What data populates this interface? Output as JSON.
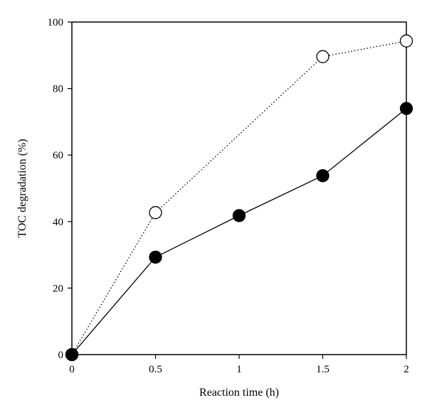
{
  "chart_data": {
    "type": "line",
    "title": "",
    "xlabel": "Reaction time (h)",
    "ylabel": "TOC degradation (%)",
    "xlim": [
      0,
      2
    ],
    "ylim": [
      0,
      100
    ],
    "x_ticks": [
      0,
      0.5,
      1,
      1.5,
      2
    ],
    "x_tick_labels": [
      "0",
      "0.5",
      "1",
      "1.5",
      "2"
    ],
    "y_ticks": [
      0,
      20,
      40,
      60,
      80,
      100
    ],
    "y_tick_labels": [
      "0",
      "20",
      "40",
      "60",
      "80",
      "100"
    ],
    "grid": false,
    "legend": "none",
    "series": [
      {
        "marker": "open-circle",
        "line_style": "dotted",
        "color": "#000000",
        "x": [
          0,
          0.5,
          1.5,
          2
        ],
        "y": [
          0,
          42.7,
          89.6,
          94.3
        ]
      },
      {
        "marker": "filled-circle",
        "line_style": "solid",
        "color": "#000000",
        "x": [
          0,
          0.5,
          1,
          1.5,
          2
        ],
        "y": [
          0,
          29.3,
          41.8,
          53.8,
          74.0
        ]
      }
    ]
  }
}
